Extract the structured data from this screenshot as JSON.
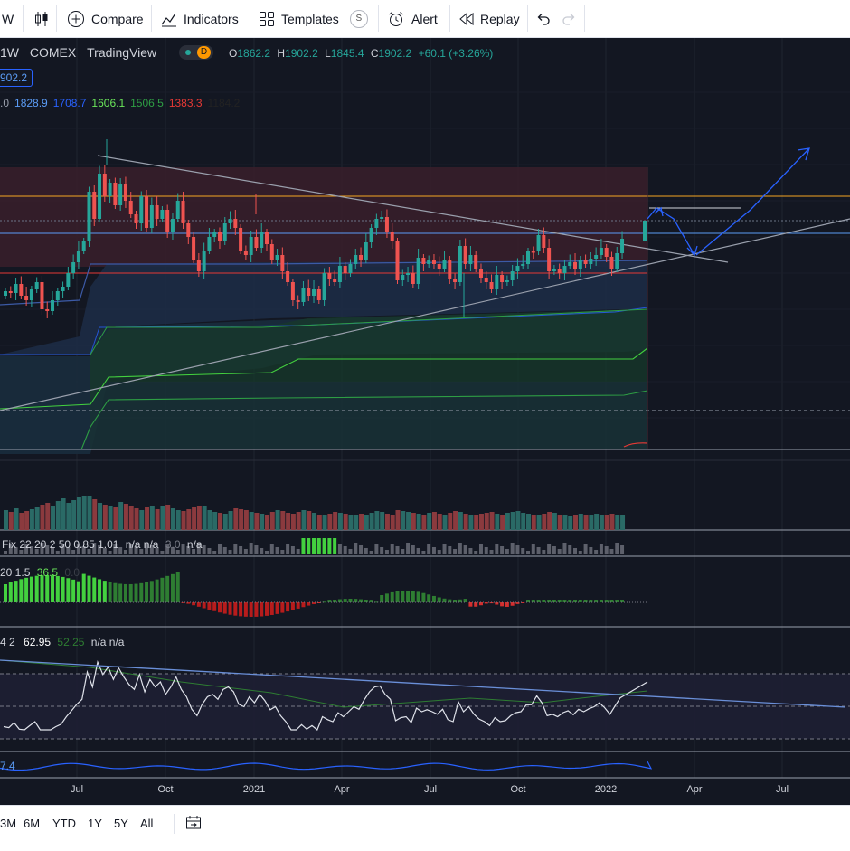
{
  "toolbar": {
    "interval": "W",
    "compare": "Compare",
    "indicators": "Indicators",
    "templates": "Templates",
    "templates_badge": "S",
    "alert": "Alert",
    "replay": "Replay"
  },
  "legend": {
    "symbol": "1W",
    "exchange": "COMEX",
    "source": "TradingView",
    "delay_badge": "D",
    "open_label": "O",
    "open": "1862.2",
    "high_label": "H",
    "high": "1902.2",
    "low_label": "L",
    "low": "1845.4",
    "close_label": "C",
    "close": "1902.2",
    "change": "+60.1 (+3.26%)",
    "price_tag": "902.2",
    "levels": [
      {
        "text": ".0",
        "color": "#9aa0ad"
      },
      {
        "text": "1828.9",
        "color": "#5b9cf6"
      },
      {
        "text": "1708.7",
        "color": "#2962ff"
      },
      {
        "text": "1606.1",
        "color": "#6ae65a"
      },
      {
        "text": "1506.5",
        "color": "#2e9e44"
      },
      {
        "text": "1383.3",
        "color": "#e53935"
      },
      {
        "text": "1184.2",
        "color": "#222222"
      }
    ]
  },
  "indicators": {
    "fix": {
      "prefix": "Fix 22 20 2 50 0.85 1.01",
      "na": "n/a n/a",
      "v": "3.0",
      "tail": "n/a"
    },
    "hist": {
      "prefix": "20 1.5",
      "v1": "36.5",
      "v2": "0.0"
    },
    "rsi": {
      "prefix": "4 2",
      "v1": "62.95",
      "v2": "52.25",
      "tail": "n/a n/a"
    },
    "bottom_value": "7.4"
  },
  "x_axis": [
    {
      "label": "Jul",
      "pos": 85
    },
    {
      "label": "Oct",
      "pos": 183
    },
    {
      "label": "2021",
      "pos": 281
    },
    {
      "label": "Apr",
      "pos": 378
    },
    {
      "label": "Jul",
      "pos": 476
    },
    {
      "label": "Oct",
      "pos": 573
    },
    {
      "label": "2022",
      "pos": 670
    },
    {
      "label": "Apr",
      "pos": 768
    },
    {
      "label": "Jul",
      "pos": 865
    }
  ],
  "ranges": [
    "3M",
    "6M",
    "YTD",
    "1Y",
    "5Y",
    "All"
  ],
  "chart_data": {
    "type": "candlestick",
    "interval": "1W",
    "symbol": "COMEX",
    "last_bar": {
      "open": 1862.2,
      "high": 1902.2,
      "low": 1845.4,
      "close": 1902.2,
      "change": 60.1,
      "change_pct": 3.26
    },
    "levels": [
      1828.9,
      1708.7,
      1606.1,
      1506.5,
      1383.3,
      1184.2
    ],
    "colors": {
      "up": "#26a69a",
      "down": "#ef5350",
      "background": "#131722"
    }
  }
}
